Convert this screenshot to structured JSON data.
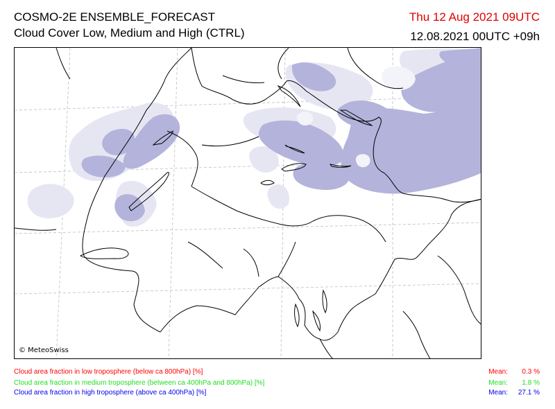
{
  "header": {
    "model_title": "COSMO-2E ENSEMBLE_FORECAST",
    "product_title": "Cloud Cover Low, Medium and High (CTRL)",
    "valid_time": "Thu 12 Aug 2021 09UTC",
    "run_time": "12.08.2021 00UTC +09h"
  },
  "map": {
    "copyright": "© MeteoSwiss"
  },
  "legend": [
    {
      "label": "Cloud area fraction in low troposphere (below ca 800hPa) [%]",
      "mean_label": "Mean:",
      "mean_value": "0.3 %",
      "color": "#ff0000"
    },
    {
      "label": "Cloud area fraction in medium troposphere (between ca 400hPa and 800hPa) [%]",
      "mean_label": "Mean:",
      "mean_value": "1.8 %",
      "color": "#22dd22"
    },
    {
      "label": "Cloud area fraction in high troposphere (above ca 400hPa) [%]",
      "mean_label": "Mean:",
      "mean_value": "27.1 %",
      "color": "#0000ee"
    }
  ],
  "colors": {
    "title_valid_time": "#e00000",
    "cloud_light": "#e6e6f3",
    "cloud_dark": "#b3b3db",
    "border_line": "#000000",
    "grid_line": "#bbbbbb"
  }
}
